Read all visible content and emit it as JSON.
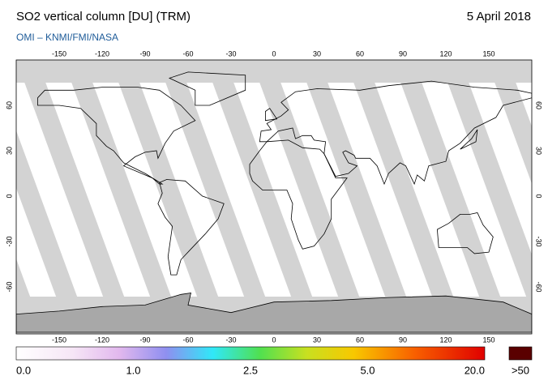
{
  "header": {
    "title": "SO2 vertical column [DU] (TRM)",
    "date": "5 April 2018",
    "source": "OMI  –  KNMI/FMI/NASA"
  },
  "map": {
    "lon_ticks": [
      -150,
      -120,
      -90,
      -60,
      -30,
      0,
      30,
      60,
      90,
      120,
      150
    ],
    "lat_ticks": [
      60,
      30,
      0,
      -30,
      -60
    ]
  },
  "colorbar": {
    "labels": [
      "0.0",
      "1.0",
      "2.5",
      "5.0",
      "20.0"
    ],
    "over_label": ">50"
  }
}
